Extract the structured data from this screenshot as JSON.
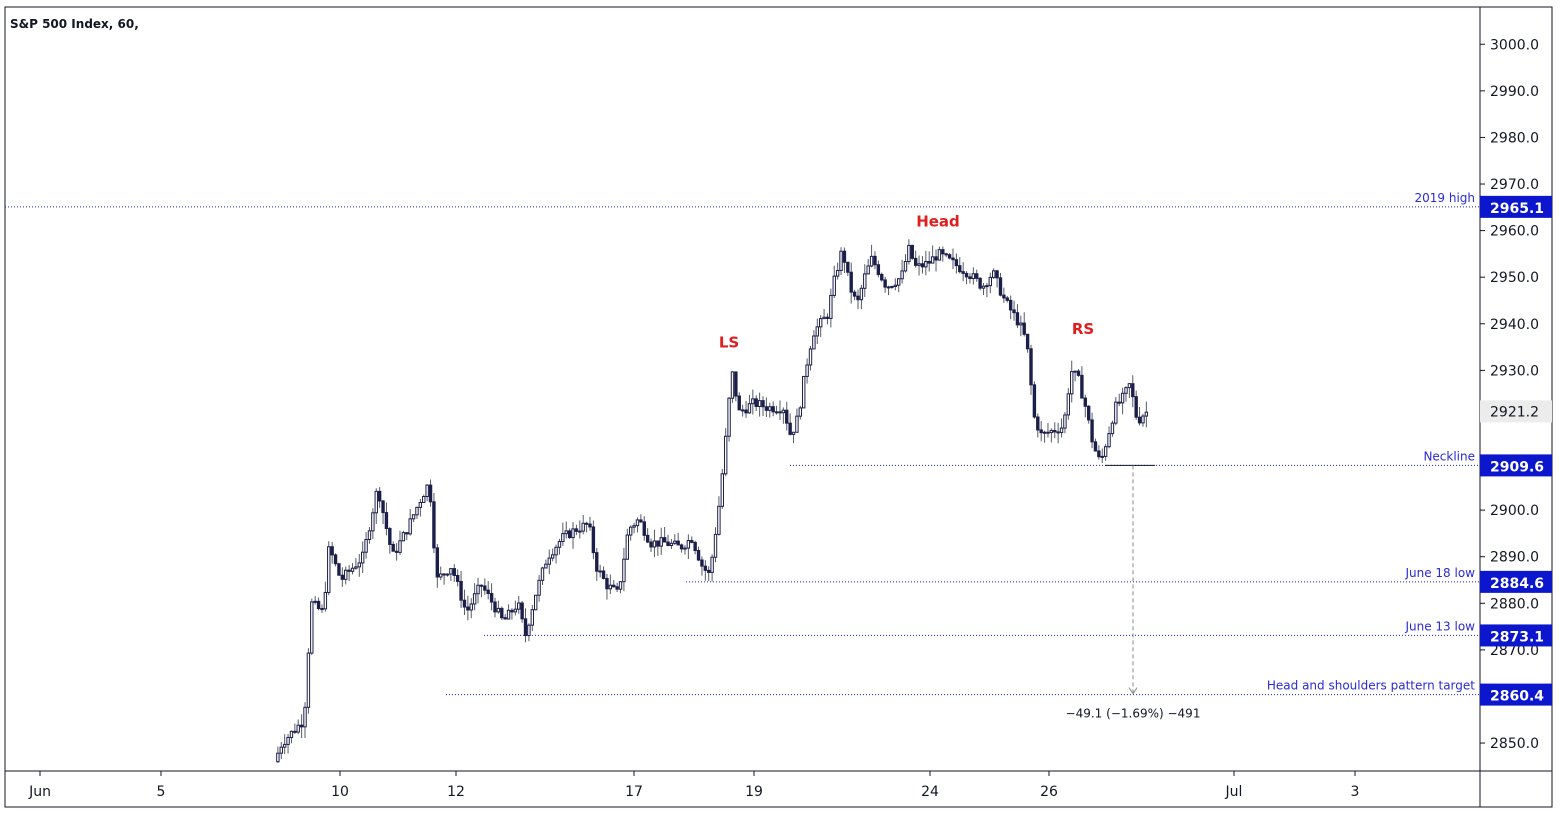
{
  "title": "S&P 500 Index, 60,",
  "chart_data": {
    "type": "candlestick",
    "title": "S&P 500 Index, 60,",
    "ylim": [
      2844,
      3008
    ],
    "y_ticks": [
      "2850.0",
      "2860.0",
      "2870.0",
      "2880.0",
      "2890.0",
      "2900.0",
      "2910.0",
      "2920.0",
      "2930.0",
      "2940.0",
      "2950.0",
      "2960.0",
      "2970.0",
      "2980.0",
      "2990.0",
      "3000.0"
    ],
    "x_ticks": [
      "Jun",
      "5",
      "10",
      "12",
      "17",
      "19",
      "24",
      "26",
      "Jul",
      "3"
    ],
    "last_price": "2921.2",
    "horizontal_levels": [
      {
        "label": "2019 high",
        "value": 2965.1,
        "tag": "2965.1"
      },
      {
        "label": "Neckline",
        "value": 2909.6,
        "tag": "2909.6"
      },
      {
        "label": "June 18 low",
        "value": 2884.6,
        "tag": "2884.6"
      },
      {
        "label": "June 13 low",
        "value": 2873.1,
        "tag": "2873.1"
      },
      {
        "label": "Head and shoulders pattern target",
        "value": 2860.4,
        "tag": "2860.4"
      }
    ],
    "pattern_labels": [
      {
        "text": "LS",
        "at": "Jun 18",
        "price": 2934
      },
      {
        "text": "Head",
        "at": "Jun 24",
        "price": 2960
      },
      {
        "text": "RS",
        "at": "Jun 26",
        "price": 2937
      }
    ],
    "measurement": {
      "from": 2909.6,
      "to": 2860.4,
      "text": "−49.1 (−1.69%) −491"
    },
    "price_path": [
      [
        0.185,
        2846
      ],
      [
        0.19,
        2850
      ],
      [
        0.205,
        2855
      ],
      [
        0.21,
        2880
      ],
      [
        0.218,
        2878
      ],
      [
        0.222,
        2892
      ],
      [
        0.23,
        2885
      ],
      [
        0.245,
        2890
      ],
      [
        0.255,
        2905
      ],
      [
        0.265,
        2890
      ],
      [
        0.275,
        2896
      ],
      [
        0.285,
        2903
      ],
      [
        0.29,
        2906
      ],
      [
        0.295,
        2885
      ],
      [
        0.305,
        2888
      ],
      [
        0.315,
        2878
      ],
      [
        0.325,
        2884
      ],
      [
        0.333,
        2880
      ],
      [
        0.34,
        2876
      ],
      [
        0.35,
        2880
      ],
      [
        0.355,
        2873
      ],
      [
        0.362,
        2882
      ],
      [
        0.37,
        2890
      ],
      [
        0.38,
        2894
      ],
      [
        0.39,
        2896
      ],
      [
        0.398,
        2897
      ],
      [
        0.403,
        2888
      ],
      [
        0.41,
        2884
      ],
      [
        0.418,
        2882
      ],
      [
        0.425,
        2896
      ],
      [
        0.432,
        2898
      ],
      [
        0.44,
        2893
      ],
      [
        0.45,
        2893
      ],
      [
        0.46,
        2892
      ],
      [
        0.468,
        2894
      ],
      [
        0.475,
        2888
      ],
      [
        0.48,
        2886
      ],
      [
        0.486,
        2900
      ],
      [
        0.49,
        2912
      ],
      [
        0.495,
        2930
      ],
      [
        0.5,
        2921
      ],
      [
        0.51,
        2923
      ],
      [
        0.52,
        2922
      ],
      [
        0.53,
        2922
      ],
      [
        0.535,
        2916
      ],
      [
        0.54,
        2920
      ],
      [
        0.545,
        2930
      ],
      [
        0.55,
        2938
      ],
      [
        0.56,
        2942
      ],
      [
        0.565,
        2950
      ],
      [
        0.57,
        2956
      ],
      [
        0.575,
        2948
      ],
      [
        0.58,
        2944
      ],
      [
        0.585,
        2950
      ],
      [
        0.59,
        2954
      ],
      [
        0.6,
        2948
      ],
      [
        0.61,
        2950
      ],
      [
        0.615,
        2956
      ],
      [
        0.62,
        2952
      ],
      [
        0.628,
        2953
      ],
      [
        0.635,
        2955
      ],
      [
        0.645,
        2953
      ],
      [
        0.655,
        2951
      ],
      [
        0.665,
        2948
      ],
      [
        0.672,
        2951
      ],
      [
        0.68,
        2945
      ],
      [
        0.69,
        2940
      ],
      [
        0.695,
        2936
      ],
      [
        0.7,
        2920
      ],
      [
        0.705,
        2916
      ],
      [
        0.712,
        2917
      ],
      [
        0.72,
        2918
      ],
      [
        0.725,
        2930
      ],
      [
        0.73,
        2928
      ],
      [
        0.735,
        2922
      ],
      [
        0.74,
        2914
      ],
      [
        0.745,
        2910
      ],
      [
        0.75,
        2916
      ],
      [
        0.755,
        2922
      ],
      [
        0.76,
        2924
      ],
      [
        0.765,
        2927
      ],
      [
        0.77,
        2919
      ],
      [
        0.775,
        2921
      ]
    ]
  }
}
